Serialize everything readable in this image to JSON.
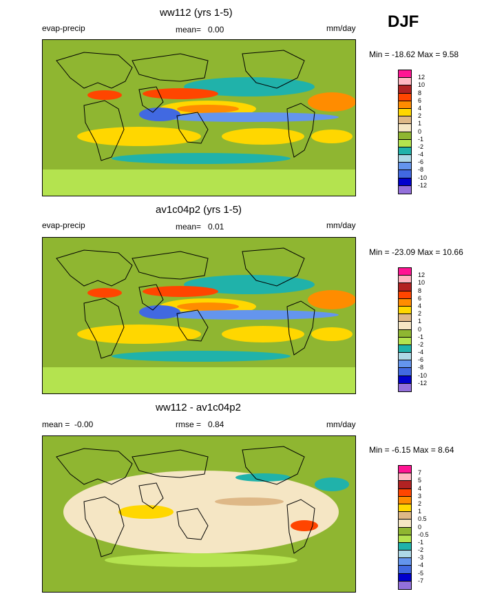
{
  "season": "DJF",
  "palettes": {
    "std": [
      "#ff1493",
      "#ffb6c1",
      "#b22222",
      "#ff4500",
      "#ff8c00",
      "#ffd700",
      "#deb887",
      "#f5e6c4",
      "#8fb631",
      "#b4e34f",
      "#20b2aa",
      "#add8e6",
      "#6495ed",
      "#4169e1",
      "#0000cd",
      "#9370db"
    ],
    "diff": [
      "#ff1493",
      "#ffb6c1",
      "#b22222",
      "#ff4500",
      "#ff8c00",
      "#ffd700",
      "#deb887",
      "#f5e6c4",
      "#8fb631",
      "#b4e34f",
      "#20b2aa",
      "#add8e6",
      "#6495ed",
      "#4169e1",
      "#0000cd",
      "#9370db"
    ]
  },
  "chart_data": [
    {
      "type": "heatmap",
      "title": "ww112 (yrs 1-5)",
      "variable": "evap-precip",
      "units": "mm/day",
      "mean_label": "mean=",
      "mean": "0.00",
      "stats": "Min = -18.62 Max =   9.58",
      "min": -18.62,
      "max": 9.58,
      "colorbar_levels": [
        "12",
        "10",
        "8",
        "6",
        "4",
        "2",
        "1",
        "0",
        "-1",
        "-2",
        "-4",
        "-6",
        "-8",
        "-10",
        "-12"
      ]
    },
    {
      "type": "heatmap",
      "title": "av1c04p2 (yrs 1-5)",
      "variable": "evap-precip",
      "units": "mm/day",
      "mean_label": "mean=",
      "mean": "0.01",
      "stats": "Min = -23.09 Max = 10.66",
      "min": -23.09,
      "max": 10.66,
      "colorbar_levels": [
        "12",
        "10",
        "8",
        "6",
        "4",
        "2",
        "1",
        "0",
        "-1",
        "-2",
        "-4",
        "-6",
        "-8",
        "-10",
        "-12"
      ]
    },
    {
      "type": "heatmap",
      "title": "ww112 - av1c04p2",
      "units": "mm/day",
      "mean_label": "mean =",
      "mean": "-0.00",
      "rmse_label": "rmse =",
      "rmse": "0.84",
      "stats": "Min =  -6.15 Max =   8.64",
      "min": -6.15,
      "max": 8.64,
      "colorbar_levels": [
        "7",
        "5",
        "4",
        "3",
        "2",
        "1",
        "0.5",
        "0",
        "-0.5",
        "-1",
        "-2",
        "-3",
        "-4",
        "-5",
        "-7"
      ]
    }
  ]
}
